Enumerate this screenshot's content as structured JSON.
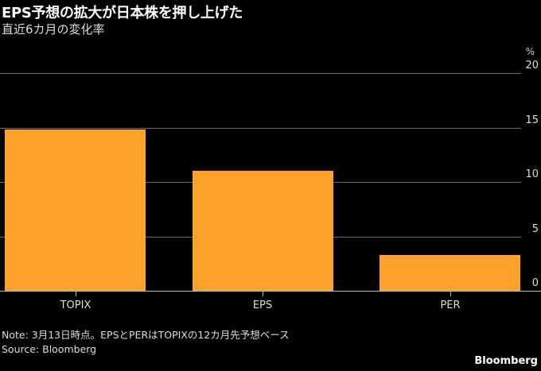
{
  "header": {
    "title": "EPS予想の拡大が日本株を押し上げた",
    "subtitle": "直近6カ月の変化率"
  },
  "footer": {
    "note": "Note: 3月13日時点。EPSとPERはTOPIXの12カ月先予想ベース",
    "source": "Source: Bloomberg",
    "brand": "Bloomberg"
  },
  "colors": {
    "bar": "#FFA22C",
    "background": "#000000"
  },
  "chart_data": {
    "type": "bar",
    "title": "EPS予想の拡大が日本株を押し上げた",
    "subtitle": "直近6カ月の変化率",
    "categories": [
      "TOPIX",
      "EPS",
      "PER"
    ],
    "values": [
      14.8,
      11.0,
      3.3
    ],
    "xlabel": "",
    "ylabel": "%",
    "ylim": [
      0,
      20
    ],
    "yticks": [
      "0",
      "5",
      "10",
      "15",
      "20"
    ],
    "grid": true,
    "legend": null
  }
}
